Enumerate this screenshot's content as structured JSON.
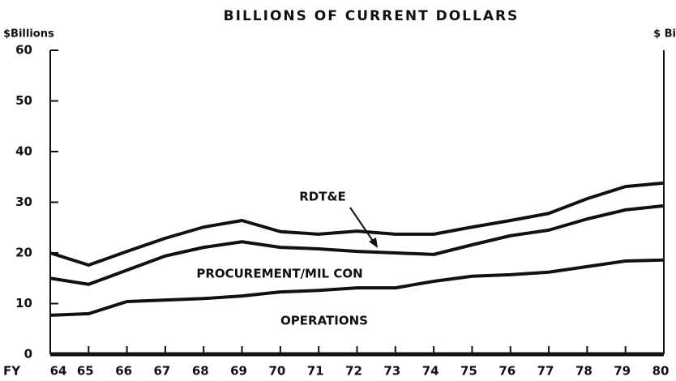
{
  "chart_data": {
    "type": "stacked_line",
    "title": "BILLIONS OF CURRENT DOLLARS",
    "y_label": "$Billions",
    "y2_label": "$ Bi",
    "x_label": "FY",
    "categories": [
      "64",
      "65",
      "66",
      "67",
      "68",
      "69",
      "70",
      "71",
      "72",
      "73",
      "74",
      "75",
      "76",
      "77",
      "78",
      "79",
      "80"
    ],
    "series": [
      {
        "name": "OPERATIONS",
        "color": "#111111",
        "values": [
          7.7,
          8,
          10.4,
          10.7,
          11,
          11.5,
          12.3,
          12.6,
          13.1,
          13.1,
          14.4,
          15.4,
          15.7,
          16.2,
          17.3,
          18.4,
          18.6
        ]
      },
      {
        "name": "PROCUREMENT/MIL CON",
        "color": "#111111",
        "values": [
          7.3,
          5.8,
          6.2,
          8.7,
          10.1,
          10.7,
          8.8,
          8.2,
          7.2,
          6.9,
          5.3,
          6.2,
          7.7,
          8.3,
          9.4,
          10.1,
          10.7
        ]
      },
      {
        "name": "RDT&E",
        "color": "#111111",
        "values": [
          5,
          3.8,
          3.7,
          3.5,
          4,
          4.2,
          3.1,
          2.9,
          4,
          3.7,
          4,
          3.5,
          3,
          3.3,
          4,
          4.6,
          4.5
        ]
      }
    ],
    "ylim": [
      0,
      60
    ],
    "yticks": [
      0,
      10,
      20,
      30,
      40,
      50,
      60
    ]
  }
}
